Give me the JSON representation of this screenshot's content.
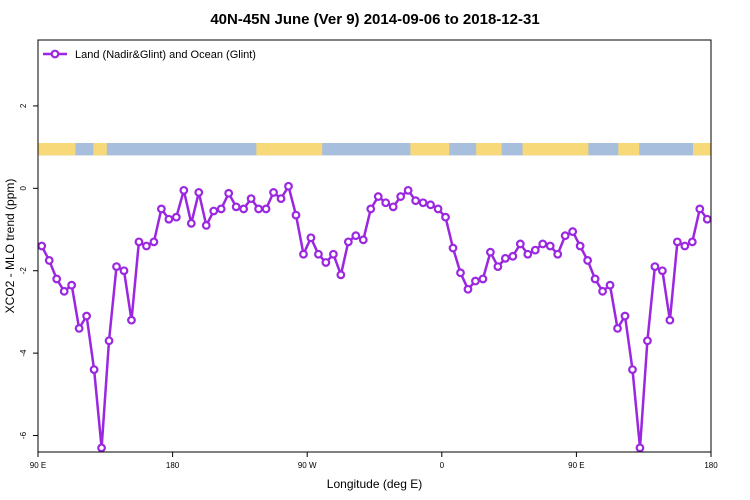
{
  "chart_data": {
    "type": "line",
    "title": "40N-45N June (Ver 9)   2014-09-06 to 2018-12-31",
    "xlabel": "Longitude (deg E)",
    "ylabel": "XCO2 - MLO trend (ppm)",
    "xlim": [
      90,
      540
    ],
    "ylim": [
      -6.4,
      3.6
    ],
    "x_ticks": [
      {
        "value": 90,
        "label": "90 E"
      },
      {
        "value": 180,
        "label": "180"
      },
      {
        "value": 270,
        "label": "90 W"
      },
      {
        "value": 360,
        "label": "0"
      },
      {
        "value": 450,
        "label": "90 E"
      },
      {
        "value": 540,
        "label": "180"
      }
    ],
    "y_ticks": [
      {
        "value": 2,
        "label": "2"
      },
      {
        "value": 0,
        "label": "0"
      },
      {
        "value": -2,
        "label": "-2"
      },
      {
        "value": -4,
        "label": "-4"
      },
      {
        "value": -6,
        "label": "-6"
      }
    ],
    "grid": false,
    "legend_position": "top-left",
    "colors": {
      "series": "#9b27e0",
      "land": "#f7d97a",
      "ocean": "#a7bfdc",
      "frame": "#000000"
    },
    "land_ocean_strip": {
      "y_range": [
        0.8,
        1.1
      ],
      "land_spans": [
        [
          90,
          115
        ],
        [
          127,
          136
        ],
        [
          236,
          280
        ],
        [
          339,
          365
        ],
        [
          383,
          400
        ],
        [
          414,
          458
        ],
        [
          478,
          492
        ],
        [
          528,
          540
        ]
      ]
    },
    "series": [
      {
        "name": "Land (Nadir&Glint) and Ocean (Glint)",
        "x": [
          92.5,
          97.5,
          102.5,
          107.5,
          112.5,
          117.5,
          122.5,
          127.5,
          132.5,
          137.5,
          142.5,
          147.5,
          152.5,
          157.5,
          162.5,
          167.5,
          172.5,
          177.5,
          182.5,
          187.5,
          192.5,
          197.5,
          202.5,
          207.5,
          212.5,
          217.5,
          222.5,
          227.5,
          232.5,
          237.5,
          242.5,
          247.5,
          252.5,
          257.5,
          262.5,
          267.5,
          272.5,
          277.5,
          282.5,
          287.5,
          292.5,
          297.5,
          302.5,
          307.5,
          312.5,
          317.5,
          322.5,
          327.5,
          332.5,
          337.5,
          342.5,
          347.5,
          352.5,
          357.5,
          362.5,
          367.5,
          372.5,
          377.5,
          382.5,
          387.5,
          392.5,
          397.5,
          402.5,
          407.5,
          412.5,
          417.5,
          422.5,
          427.5,
          432.5,
          437.5,
          442.5,
          447.5,
          452.5,
          457.5,
          462.5,
          467.5,
          472.5,
          477.5,
          482.5,
          487.5,
          492.5,
          497.5,
          502.5,
          507.5,
          512.5,
          517.5,
          522.5,
          527.5,
          532.5,
          537.5
        ],
        "y": [
          -1.4,
          -1.75,
          -2.2,
          -2.5,
          -2.35,
          -3.4,
          -3.1,
          -4.4,
          -6.3,
          -3.7,
          -1.9,
          -2.0,
          -3.2,
          -1.3,
          -1.4,
          -1.3,
          -0.5,
          -0.75,
          -0.7,
          -0.05,
          -0.85,
          -0.1,
          -0.9,
          -0.55,
          -0.5,
          -0.12,
          -0.45,
          -0.5,
          -0.25,
          -0.5,
          -0.5,
          -0.1,
          -0.25,
          0.05,
          -0.65,
          -1.6,
          -1.2,
          -1.6,
          -1.8,
          -1.6,
          -2.1,
          -1.3,
          -1.15,
          -1.25,
          -0.5,
          -0.2,
          -0.35,
          -0.45,
          -0.2,
          -0.05,
          -0.3,
          -0.35,
          -0.4,
          -0.5,
          -0.7,
          -1.45,
          -2.05,
          -2.45,
          -2.25,
          -2.2,
          -1.55,
          -1.9,
          -1.7,
          -1.65,
          -1.35,
          -1.6,
          -1.5,
          -1.35,
          -1.4,
          -1.6,
          -1.15,
          -1.05,
          -1.4,
          -1.75,
          -2.2,
          -2.5,
          -2.35,
          -3.4,
          -3.1,
          -4.4,
          -6.3,
          -3.7,
          -1.9,
          -2.0,
          -3.2,
          -1.3,
          -1.4,
          -1.3,
          -0.5,
          -0.75
        ]
      }
    ]
  }
}
